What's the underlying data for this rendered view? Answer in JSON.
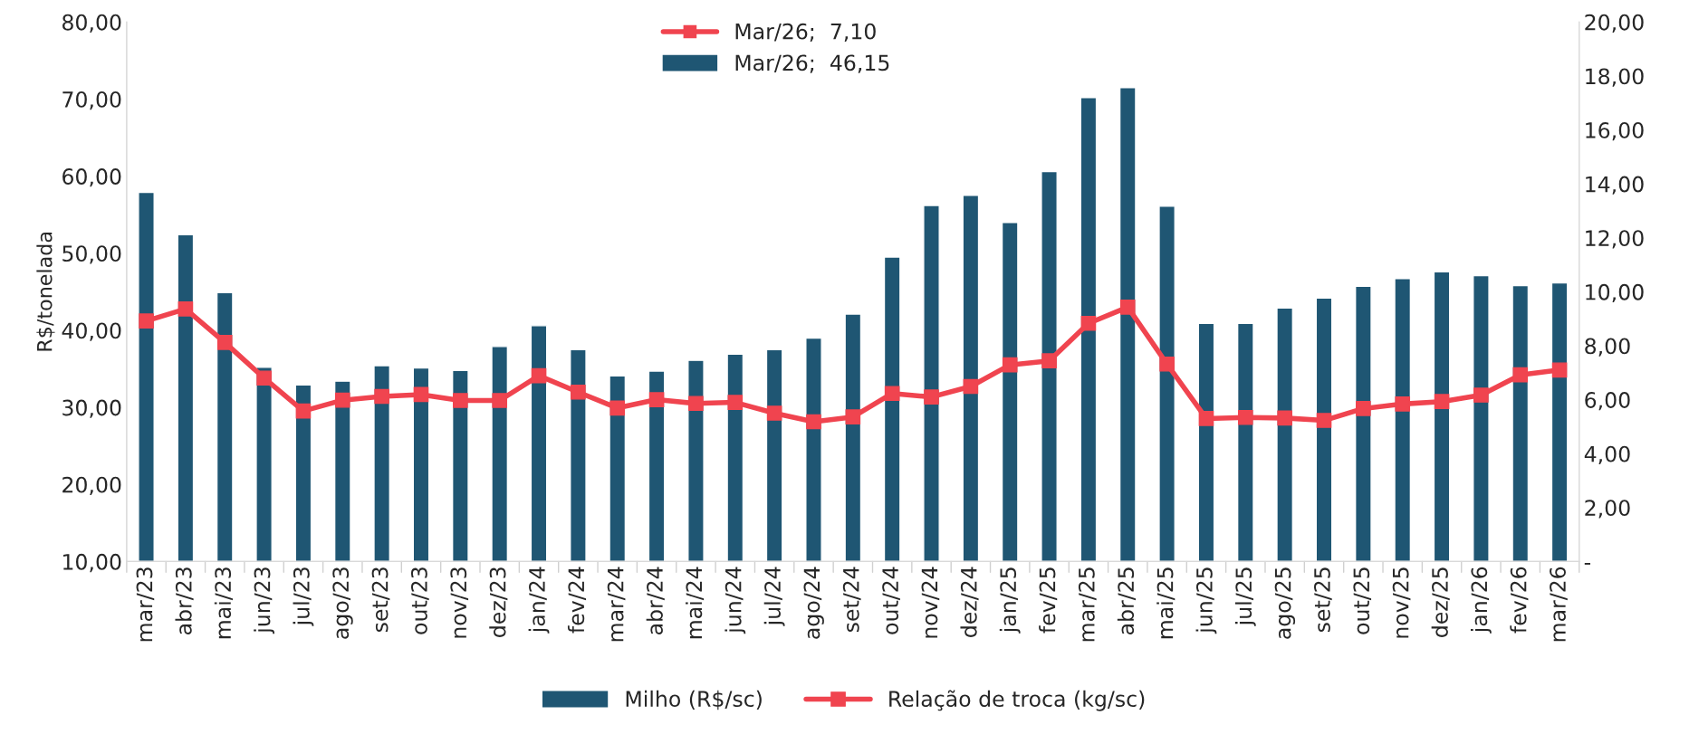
{
  "chart_data": {
    "type": "bar",
    "ylabel": "R$/tonelada",
    "categories": [
      "mar/23",
      "abr/23",
      "mai/23",
      "jun/23",
      "jul/23",
      "ago/23",
      "set/23",
      "out/23",
      "nov/23",
      "dez/23",
      "jan/24",
      "fev/24",
      "mar/24",
      "abr/24",
      "mai/24",
      "jun/24",
      "jul/24",
      "ago/24",
      "set/24",
      "out/24",
      "nov/24",
      "dez/24",
      "jan/25",
      "fev/25",
      "mar/25",
      "abr/25",
      "mai/25",
      "jun/25",
      "jul/25",
      "ago/25",
      "set/25",
      "out/25",
      "nov/25",
      "dez/25",
      "jan/26",
      "fev/26",
      "mar/26"
    ],
    "series": [
      {
        "name": "Milho (R$/sc)",
        "color": "#1f5673",
        "values": [
          57.9,
          52.4,
          44.9,
          35.2,
          32.9,
          33.4,
          35.4,
          35.1,
          34.8,
          37.9,
          40.6,
          37.5,
          34.1,
          34.7,
          36.1,
          36.9,
          37.5,
          39.0,
          42.1,
          49.5,
          56.2,
          57.5,
          54.0,
          60.6,
          70.2,
          71.5,
          56.1,
          40.9,
          40.9,
          42.9,
          44.2,
          45.7,
          46.7,
          47.6,
          47.1,
          45.8,
          46.15
        ]
      },
      {
        "name": "Relação de troca (kg/sc)",
        "type": "line",
        "axis": "y2",
        "color": "#f0444f",
        "marker": "square",
        "line_style": "solid",
        "values": [
          8.92,
          9.36,
          8.12,
          6.8,
          5.58,
          5.98,
          6.12,
          6.19,
          5.97,
          5.97,
          6.89,
          6.28,
          5.69,
          6.0,
          5.86,
          5.9,
          5.5,
          5.18,
          5.36,
          6.23,
          6.1,
          6.49,
          7.29,
          7.44,
          8.83,
          9.43,
          7.32,
          5.3,
          5.34,
          5.32,
          5.23,
          5.67,
          5.84,
          5.93,
          6.17,
          6.92,
          7.1
        ]
      }
    ],
    "ylim": [
      10,
      80
    ],
    "yticks": [
      {
        "value": 10,
        "label": "10,00"
      },
      {
        "value": 20,
        "label": "20,00"
      },
      {
        "value": 30,
        "label": "30,00"
      },
      {
        "value": 40,
        "label": "40,00"
      },
      {
        "value": 50,
        "label": "50,00"
      },
      {
        "value": 60,
        "label": "60,00"
      },
      {
        "value": 70,
        "label": "70,00"
      },
      {
        "value": 80,
        "label": "80,00"
      }
    ],
    "y2lim": [
      0,
      20
    ],
    "y2ticks": [
      {
        "value": 0,
        "label": "-"
      },
      {
        "value": 2,
        "label": "2,00"
      },
      {
        "value": 4,
        "label": "4,00"
      },
      {
        "value": 6,
        "label": "6,00"
      },
      {
        "value": 8,
        "label": "8,00"
      },
      {
        "value": 10,
        "label": "10,00"
      },
      {
        "value": 12,
        "label": "12,00"
      },
      {
        "value": 14,
        "label": "14,00"
      },
      {
        "value": 16,
        "label": "16,00"
      },
      {
        "value": 18,
        "label": "18,00"
      },
      {
        "value": 20,
        "label": "20,00"
      }
    ],
    "annotations": [
      "Mar/26;  7,10",
      "Mar/26;  46,15"
    ],
    "legend": "bottom",
    "grid": false
  }
}
